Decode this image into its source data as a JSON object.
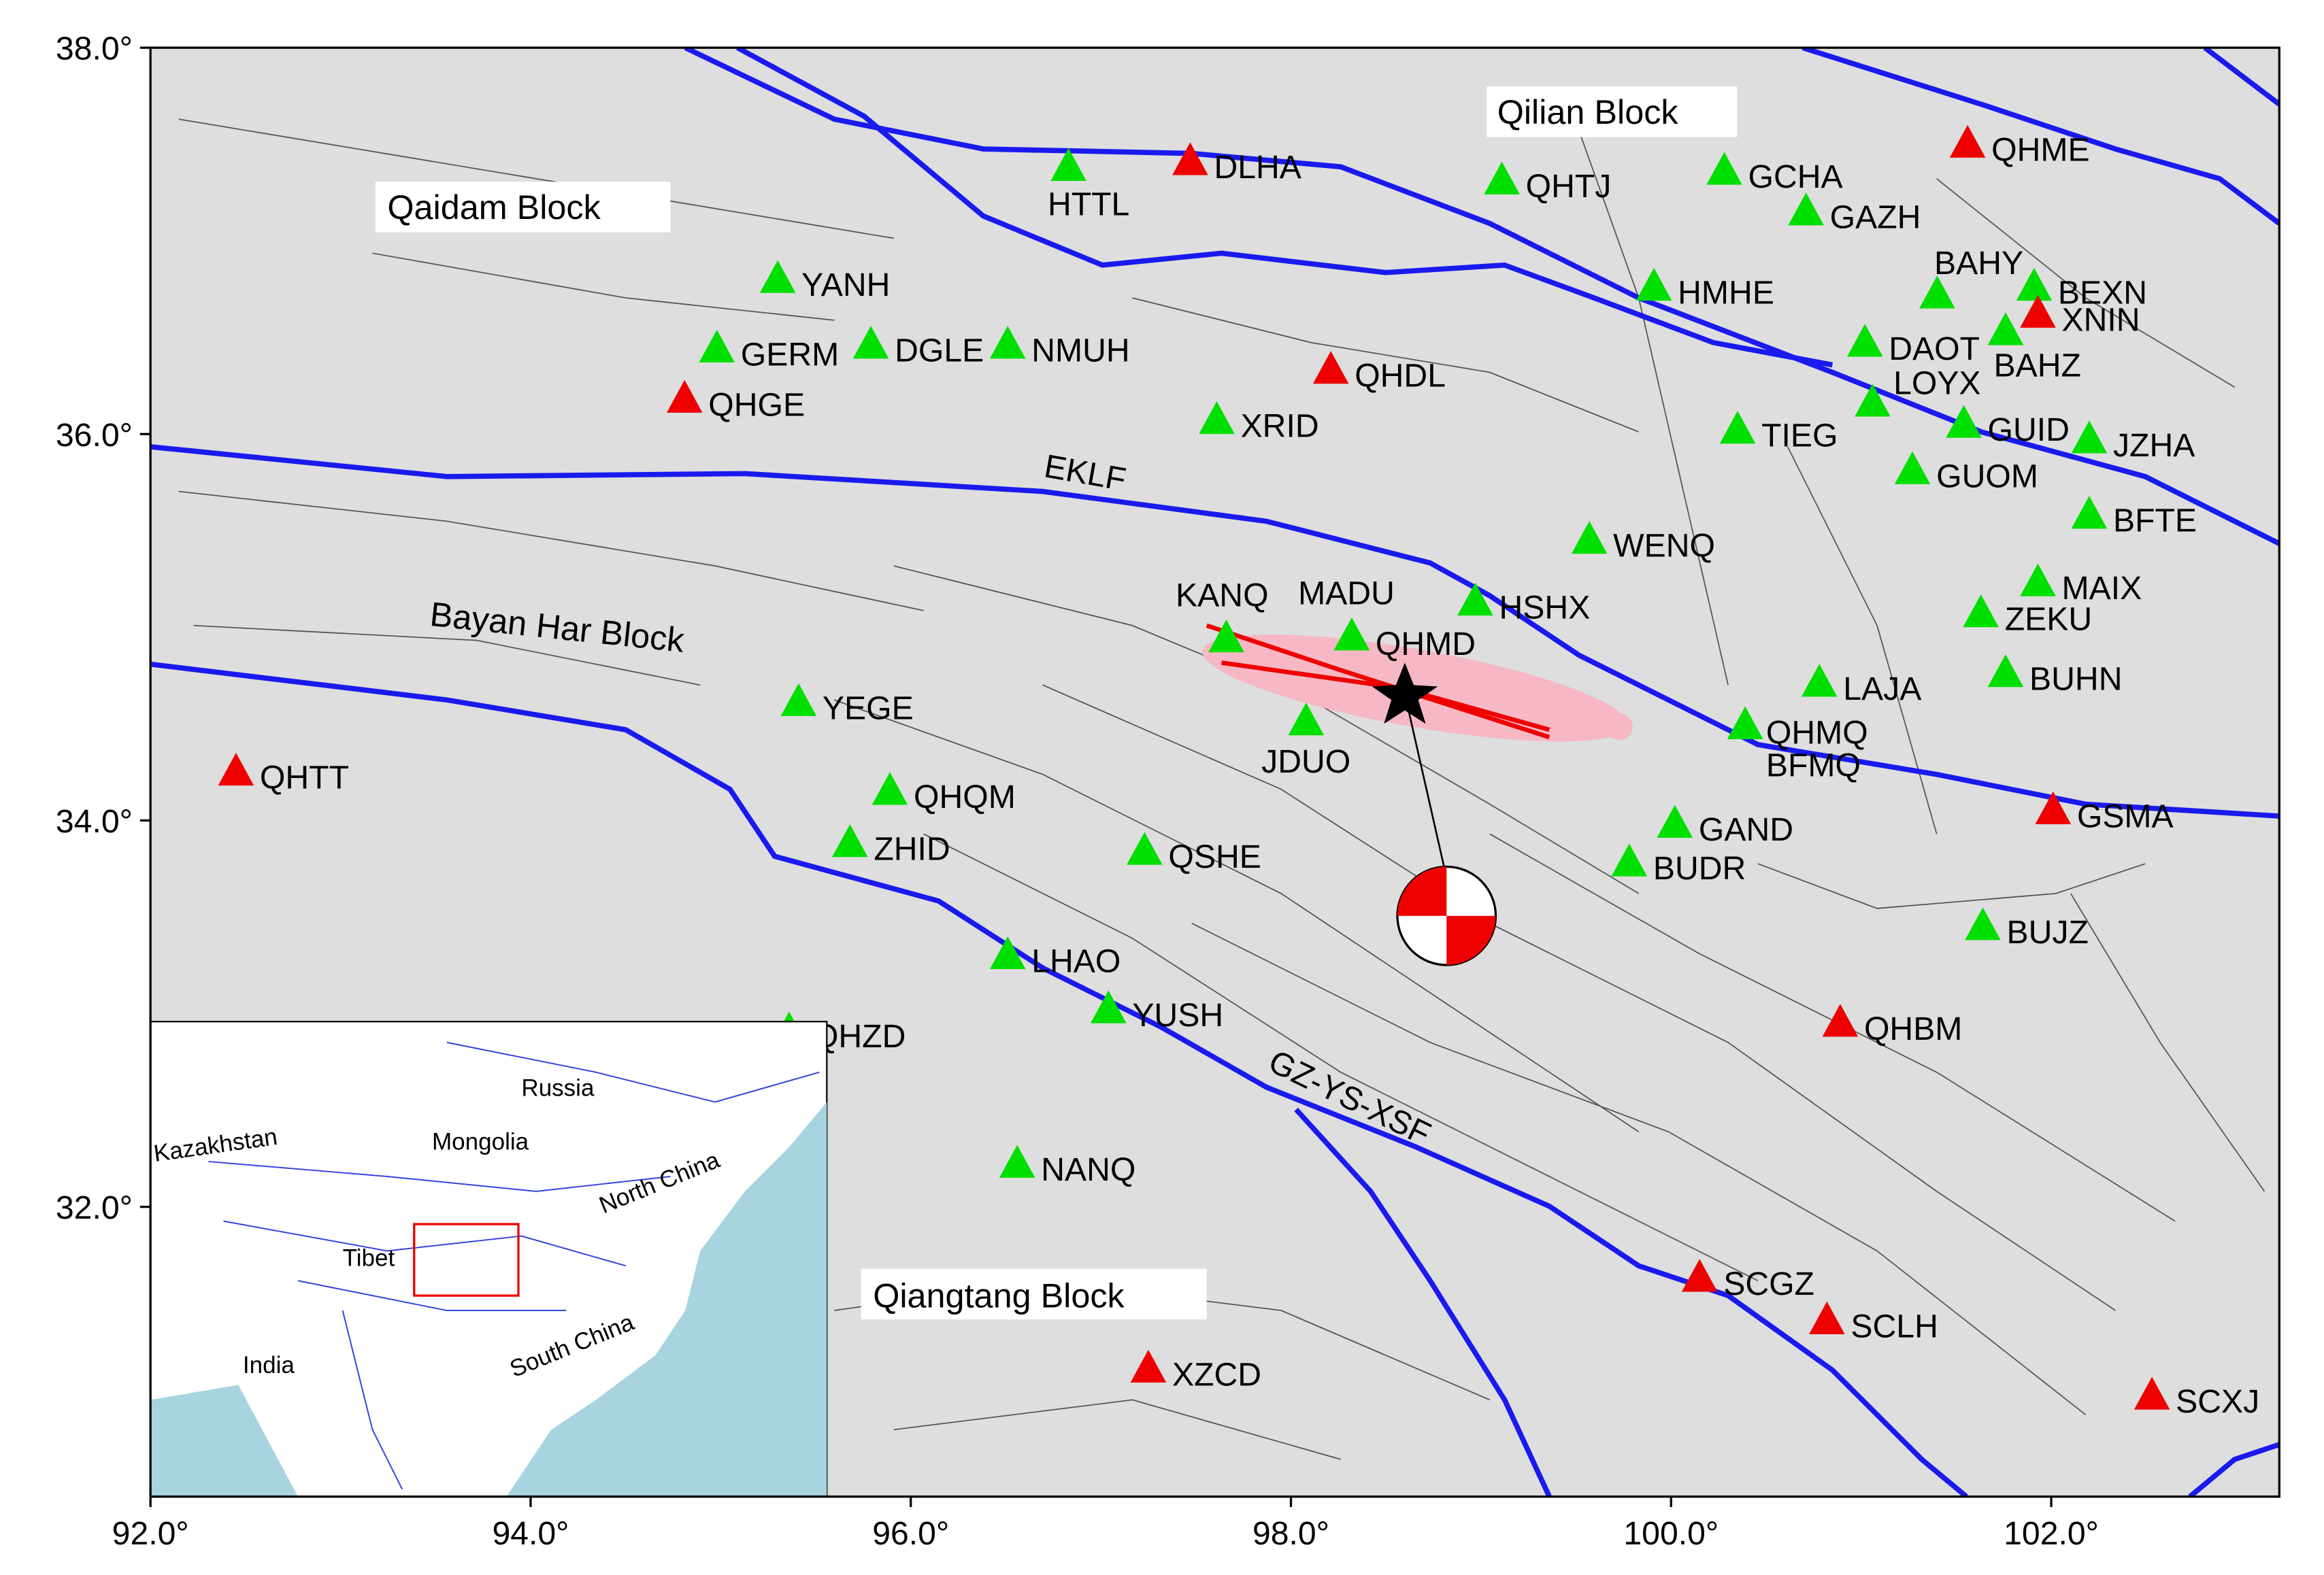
{
  "map": {
    "xlim": [
      92.0,
      103.2
    ],
    "ylim": [
      30.5,
      38.0
    ],
    "xticks": [
      {
        "value": 92,
        "label": "92.0°"
      },
      {
        "value": 94,
        "label": "94.0°"
      },
      {
        "value": 96,
        "label": "96.0°"
      },
      {
        "value": 98,
        "label": "98.0°"
      },
      {
        "value": 100,
        "label": "100.0°"
      },
      {
        "value": 102,
        "label": "102.0°"
      }
    ],
    "yticks": [
      {
        "value": 32,
        "label": "32.0°"
      },
      {
        "value": 34,
        "label": "34.0°"
      },
      {
        "value": 36,
        "label": "36.0°"
      },
      {
        "value": 38,
        "label": "38.0°"
      }
    ],
    "stations": [
      {
        "name": "HTTL",
        "lon": 96.83,
        "lat": 37.38,
        "color": "#00e000"
      },
      {
        "name": "DLHA",
        "lon": 97.47,
        "lat": 37.41,
        "color": "#ee0000"
      },
      {
        "name": "QHTJ",
        "lon": 99.11,
        "lat": 37.31,
        "color": "#00e000"
      },
      {
        "name": "GCHA",
        "lon": 100.28,
        "lat": 37.36,
        "color": "#00e000"
      },
      {
        "name": "GAZH",
        "lon": 100.71,
        "lat": 37.15,
        "color": "#00e000"
      },
      {
        "name": "QHME",
        "lon": 101.56,
        "lat": 37.5,
        "color": "#ee0000"
      },
      {
        "name": "YANH",
        "lon": 95.3,
        "lat": 36.8,
        "color": "#00e000"
      },
      {
        "name": "GERM",
        "lon": 94.98,
        "lat": 36.44,
        "color": "#00e000"
      },
      {
        "name": "DGLE",
        "lon": 95.79,
        "lat": 36.46,
        "color": "#00e000"
      },
      {
        "name": "NMUH",
        "lon": 96.51,
        "lat": 36.46,
        "color": "#00e000"
      },
      {
        "name": "QHGE",
        "lon": 94.81,
        "lat": 36.18,
        "color": "#ee0000"
      },
      {
        "name": "QHDL",
        "lon": 98.21,
        "lat": 36.33,
        "color": "#ee0000"
      },
      {
        "name": "XRID",
        "lon": 97.61,
        "lat": 36.07,
        "color": "#00e000"
      },
      {
        "name": "HMHE",
        "lon": 99.91,
        "lat": 36.76,
        "color": "#00e000"
      },
      {
        "name": "BAHY",
        "lon": 101.4,
        "lat": 36.72,
        "color": "#00e000"
      },
      {
        "name": "BEXN",
        "lon": 101.91,
        "lat": 36.76,
        "color": "#00e000"
      },
      {
        "name": "XNIN",
        "lon": 101.93,
        "lat": 36.62,
        "color": "#ee0000"
      },
      {
        "name": "BAHZ",
        "lon": 101.76,
        "lat": 36.53,
        "color": "#00e000"
      },
      {
        "name": "DAOT",
        "lon": 101.02,
        "lat": 36.47,
        "color": "#00e000"
      },
      {
        "name": "LOYX",
        "lon": 101.06,
        "lat": 36.16,
        "color": "#00e000"
      },
      {
        "name": "TIEG",
        "lon": 100.35,
        "lat": 36.02,
        "color": "#00e000"
      },
      {
        "name": "GUID",
        "lon": 101.54,
        "lat": 36.05,
        "color": "#00e000"
      },
      {
        "name": "JZHA",
        "lon": 102.2,
        "lat": 35.97,
        "color": "#00e000"
      },
      {
        "name": "GUOM",
        "lon": 101.27,
        "lat": 35.81,
        "color": "#00e000"
      },
      {
        "name": "BFTE",
        "lon": 102.2,
        "lat": 35.58,
        "color": "#00e000"
      },
      {
        "name": "WENQ",
        "lon": 99.57,
        "lat": 35.45,
        "color": "#00e000"
      },
      {
        "name": "MAIX",
        "lon": 101.93,
        "lat": 35.23,
        "color": "#00e000"
      },
      {
        "name": "ZEKU",
        "lon": 101.63,
        "lat": 35.07,
        "color": "#00e000"
      },
      {
        "name": "BUHN",
        "lon": 101.76,
        "lat": 34.76,
        "color": "#00e000"
      },
      {
        "name": "HSHX",
        "lon": 98.97,
        "lat": 35.13,
        "color": "#00e000"
      },
      {
        "name": "KANQ",
        "lon": 97.66,
        "lat": 34.94,
        "color": "#00e000"
      },
      {
        "name": "MADU",
        "lon": 98.32,
        "lat": 34.95,
        "color": "#00e000"
      },
      {
        "name": "QHMD",
        "lon": 98.32,
        "lat": 34.95,
        "color": "#00e000"
      },
      {
        "name": "JDUO",
        "lon": 98.08,
        "lat": 34.51,
        "color": "#00e000"
      },
      {
        "name": "LAJA",
        "lon": 100.78,
        "lat": 34.71,
        "color": "#00e000"
      },
      {
        "name": "QHMQ",
        "lon": 100.39,
        "lat": 34.49,
        "color": "#00e000"
      },
      {
        "name": "BFMQ",
        "lon": 100.39,
        "lat": 34.49,
        "color": "#00e000"
      },
      {
        "name": "YEGE",
        "lon": 95.41,
        "lat": 34.61,
        "color": "#00e000"
      },
      {
        "name": "QHTT",
        "lon": 92.45,
        "lat": 34.25,
        "color": "#ee0000"
      },
      {
        "name": "QHQM",
        "lon": 95.89,
        "lat": 34.15,
        "color": "#00e000"
      },
      {
        "name": "ZHID",
        "lon": 95.68,
        "lat": 33.88,
        "color": "#00e000"
      },
      {
        "name": "QSHE",
        "lon": 97.23,
        "lat": 33.84,
        "color": "#00e000"
      },
      {
        "name": "GAND",
        "lon": 100.02,
        "lat": 33.98,
        "color": "#00e000"
      },
      {
        "name": "BUDR",
        "lon": 99.78,
        "lat": 33.78,
        "color": "#00e000"
      },
      {
        "name": "GSMA",
        "lon": 102.01,
        "lat": 34.05,
        "color": "#ee0000"
      },
      {
        "name": "BUJZ",
        "lon": 101.64,
        "lat": 33.45,
        "color": "#00e000"
      },
      {
        "name": "LHAO",
        "lon": 96.51,
        "lat": 33.3,
        "color": "#00e000"
      },
      {
        "name": "YUSH",
        "lon": 97.04,
        "lat": 33.02,
        "color": "#00e000"
      },
      {
        "name": "QHZD",
        "lon": 95.36,
        "lat": 32.91,
        "color": "#00e000"
      },
      {
        "name": "QHBM",
        "lon": 100.89,
        "lat": 32.95,
        "color": "#ee0000"
      },
      {
        "name": "NANQ",
        "lon": 96.56,
        "lat": 32.22,
        "color": "#00e000"
      },
      {
        "name": "SCGZ",
        "lon": 100.15,
        "lat": 31.63,
        "color": "#ee0000"
      },
      {
        "name": "SCLH",
        "lon": 100.82,
        "lat": 31.41,
        "color": "#ee0000"
      },
      {
        "name": "XZCD",
        "lon": 97.25,
        "lat": 31.16,
        "color": "#ee0000"
      },
      {
        "name": "SCXJ",
        "lon": 102.53,
        "lat": 31.02,
        "color": "#ee0000"
      }
    ],
    "blocks": [
      "Qaidam Block",
      "Qilian Block",
      "Bayan Har Block",
      "Qiangtang Block"
    ],
    "faults": [
      "EKLF",
      "GZ-YS-XSF"
    ],
    "inset": [
      "Russia",
      "Kazakhstan",
      "Mongolia",
      "North China",
      "Tibet",
      "South China",
      "India"
    ]
  }
}
